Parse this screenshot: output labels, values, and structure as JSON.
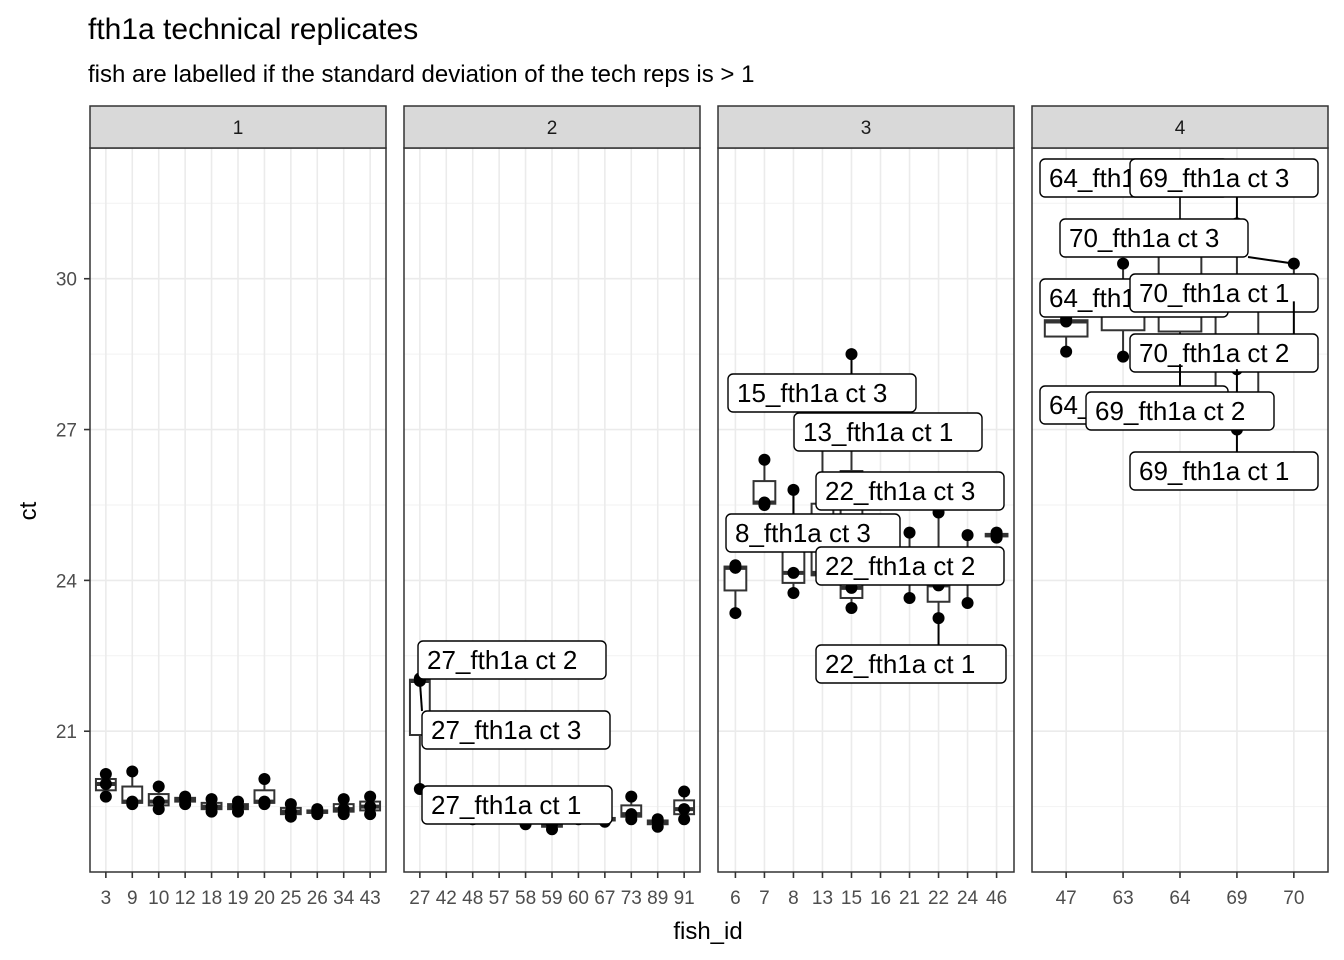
{
  "chart_data": {
    "type": "boxplot",
    "title": "fth1a technical replicates",
    "subtitle": "fish are labelled if the standard deviation of the tech reps is > 1",
    "xlabel": "fish_id",
    "ylabel": "ct",
    "ylim": [
      18.2,
      32.6
    ],
    "yticks": [
      21,
      24,
      27,
      30
    ],
    "grid": true,
    "panels": [
      {
        "name": "1",
        "fish": [
          {
            "id": "3",
            "points": [
              19.7,
              19.95,
              20.15
            ]
          },
          {
            "id": "9",
            "points": [
              19.55,
              19.6,
              20.2
            ]
          },
          {
            "id": "10",
            "points": [
              19.45,
              19.6,
              19.9
            ]
          },
          {
            "id": "12",
            "points": [
              19.55,
              19.65,
              19.7
            ]
          },
          {
            "id": "18",
            "points": [
              19.4,
              19.5,
              19.65
            ]
          },
          {
            "id": "19",
            "points": [
              19.4,
              19.5,
              19.6
            ]
          },
          {
            "id": "20",
            "points": [
              19.55,
              19.6,
              20.05
            ]
          },
          {
            "id": "25",
            "points": [
              19.3,
              19.4,
              19.55
            ]
          },
          {
            "id": "26",
            "points": [
              19.35,
              19.4,
              19.45
            ]
          },
          {
            "id": "34",
            "points": [
              19.35,
              19.45,
              19.65
            ]
          },
          {
            "id": "43",
            "points": [
              19.35,
              19.5,
              19.7
            ]
          }
        ]
      },
      {
        "name": "2",
        "fish": [
          {
            "id": "27",
            "points": [
              19.85,
              22.0,
              22.05
            ]
          },
          {
            "id": "42",
            "points": [
              19.4,
              19.45,
              19.5
            ]
          },
          {
            "id": "48",
            "points": [
              19.25,
              19.3,
              19.4
            ]
          },
          {
            "id": "57",
            "points": [
              19.3,
              19.35,
              19.4
            ]
          },
          {
            "id": "58",
            "points": [
              19.15,
              19.25,
              19.3
            ]
          },
          {
            "id": "59",
            "points": [
              19.05,
              19.15,
              19.25
            ]
          },
          {
            "id": "60",
            "points": [
              19.25,
              19.3,
              19.4
            ]
          },
          {
            "id": "67",
            "points": [
              19.2,
              19.25,
              19.3
            ]
          },
          {
            "id": "73",
            "points": [
              19.25,
              19.35,
              19.7
            ]
          },
          {
            "id": "89",
            "points": [
              19.1,
              19.2,
              19.25
            ]
          },
          {
            "id": "91",
            "points": [
              19.25,
              19.45,
              19.8
            ]
          }
        ]
      },
      {
        "name": "3",
        "fish": [
          {
            "id": "6",
            "points": [
              23.35,
              24.25,
              24.3
            ]
          },
          {
            "id": "7",
            "points": [
              25.5,
              25.55,
              26.4
            ]
          },
          {
            "id": "8",
            "points": [
              23.75,
              24.15,
              25.8
            ]
          },
          {
            "id": "13",
            "points": [
              24.05,
              24.15,
              26.9
            ]
          },
          {
            "id": "15",
            "points": [
              23.45,
              23.85,
              28.5
            ]
          },
          {
            "id": "16",
            "points": [
              24.3,
              24.5,
              24.7
            ]
          },
          {
            "id": "21",
            "points": [
              23.65,
              24.3,
              24.95
            ]
          },
          {
            "id": "22",
            "points": [
              23.25,
              23.9,
              25.35
            ]
          },
          {
            "id": "24",
            "points": [
              23.55,
              24.3,
              24.9
            ]
          },
          {
            "id": "46",
            "points": [
              24.85,
              24.9,
              24.95
            ]
          }
        ]
      },
      {
        "name": "4",
        "fish": [
          {
            "id": "47",
            "points": [
              28.55,
              29.15,
              29.2
            ]
          },
          {
            "id": "63",
            "points": [
              28.45,
              29.5,
              30.3
            ]
          },
          {
            "id": "64",
            "points": [
              28.3,
              29.6,
              31.8
            ]
          },
          {
            "id": "69",
            "points": [
              27.0,
              28.2,
              31.1
            ]
          },
          {
            "id": "70",
            "points": [
              29.55,
              29.8,
              30.3
            ]
          }
        ]
      }
    ],
    "labels": [
      {
        "text": "27_fth1a ct 2",
        "panel": 0,
        "fish": "27",
        "y": 22.05
      },
      {
        "text": "27_fth1a ct 3",
        "panel": 0,
        "fish": "27",
        "y": 22.0
      },
      {
        "text": "27_fth1a ct 1",
        "panel": 0,
        "fish": "27",
        "y": 19.85
      },
      {
        "text": "15_fth1a ct 3",
        "panel": 1,
        "fish": "15",
        "y": 28.5
      },
      {
        "text": "13_fth1a ct 1",
        "panel": 1,
        "fish": "13",
        "y": 26.9
      },
      {
        "text": "22_fth1a ct 3",
        "panel": 1,
        "fish": "22",
        "y": 25.35
      },
      {
        "text": "8_fth1a ct 3",
        "panel": 1,
        "fish": "8",
        "y": 25.8
      },
      {
        "text": "22_fth1a ct 2",
        "panel": 1,
        "fish": "22",
        "y": 23.9
      },
      {
        "text": "22_fth1a ct 1",
        "panel": 1,
        "fish": "22",
        "y": 23.25
      },
      {
        "text": "64_fth1a ct 3",
        "panel": 2,
        "fish": "64",
        "y": 31.8
      },
      {
        "text": "69_fth1a ct 3",
        "panel": 2,
        "fish": "69",
        "y": 31.1
      },
      {
        "text": "70_fth1a ct 3",
        "panel": 2,
        "fish": "70",
        "y": 30.3
      },
      {
        "text": "64_fth1a ct 1",
        "panel": 2,
        "fish": "64",
        "y": 29.6
      },
      {
        "text": "70_fth1a ct 1",
        "panel": 2,
        "fish": "70",
        "y": 29.8
      },
      {
        "text": "70_fth1a ct 2",
        "panel": 2,
        "fish": "70",
        "y": 29.55
      },
      {
        "text": "64_fth1a ct 2",
        "panel": 2,
        "fish": "64",
        "y": 28.3
      },
      {
        "text": "69_fth1a ct 2",
        "panel": 2,
        "fish": "69",
        "y": 28.2
      },
      {
        "text": "69_fth1a ct 1",
        "panel": 2,
        "fish": "69",
        "y": 27.0
      }
    ]
  }
}
